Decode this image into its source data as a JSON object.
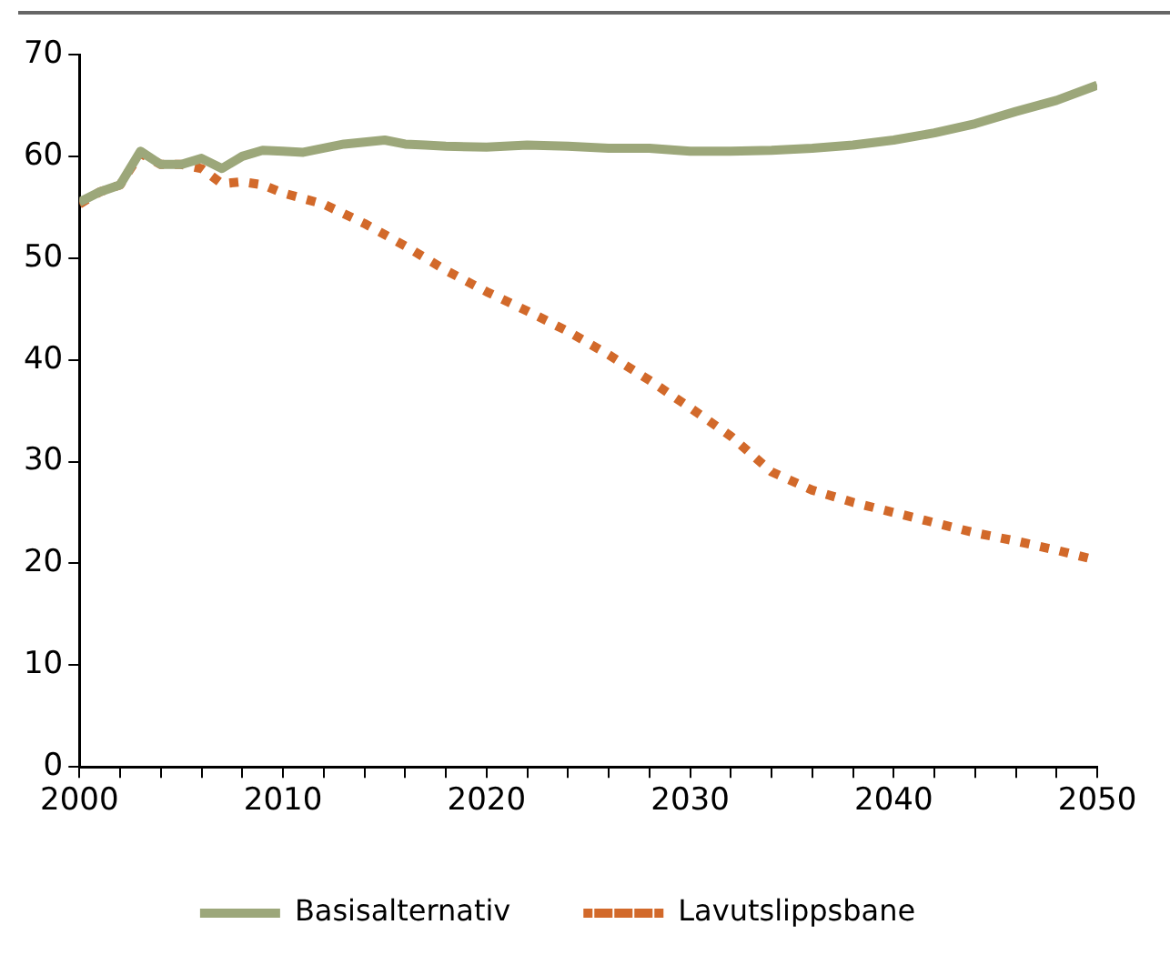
{
  "chart_data": {
    "type": "line",
    "xlim": [
      2000,
      2050
    ],
    "xticks": [
      2000,
      {
        "value": 2002,
        "label": null
      },
      {
        "value": 2004,
        "label": null
      },
      {
        "value": 2006,
        "label": null
      },
      {
        "value": 2008,
        "label": null
      },
      2010,
      {
        "value": 2012,
        "label": null
      },
      {
        "value": 2014,
        "label": null
      },
      {
        "value": 2016,
        "label": null
      },
      {
        "value": 2018,
        "label": null
      },
      2020,
      {
        "value": 2022,
        "label": null
      },
      {
        "value": 2024,
        "label": null
      },
      {
        "value": 2026,
        "label": null
      },
      {
        "value": 2028,
        "label": null
      },
      2030,
      {
        "value": 2032,
        "label": null
      },
      {
        "value": 2034,
        "label": null
      },
      {
        "value": 2036,
        "label": null
      },
      {
        "value": 2038,
        "label": null
      },
      2040,
      {
        "value": 2042,
        "label": null
      },
      {
        "value": 2044,
        "label": null
      },
      {
        "value": 2046,
        "label": null
      },
      {
        "value": 2048,
        "label": null
      },
      2050
    ],
    "ylim": [
      0,
      70
    ],
    "yticks": [
      0,
      10,
      20,
      30,
      40,
      50,
      60,
      70
    ],
    "grid": false,
    "legend": "bottom",
    "marker": "none",
    "series": [
      {
        "name": "Basisalternativ",
        "color": "#9ca77a",
        "line_style": "solid",
        "x": [
          2000,
          2001,
          2002,
          2003,
          2004,
          2005,
          2006,
          2007,
          2008,
          2009,
          2010,
          2011,
          2012,
          2013,
          2014,
          2015,
          2016,
          2017,
          2018,
          2020,
          2022,
          2024,
          2026,
          2028,
          2030,
          2032,
          2034,
          2036,
          2038,
          2040,
          2042,
          2044,
          2046,
          2048,
          2050
        ],
        "values": [
          55.5,
          56.5,
          57.2,
          60.5,
          59.2,
          59.2,
          59.8,
          58.8,
          60,
          60.6,
          60.5,
          60.4,
          60.8,
          61.2,
          61.4,
          61.6,
          61.2,
          61.1,
          61,
          60.9,
          61.1,
          61,
          60.8,
          60.8,
          60.5,
          60.5,
          60.6,
          60.8,
          61.1,
          61.6,
          62.3,
          63.2,
          64.4,
          65.5,
          67
        ]
      },
      {
        "name": "Lavutslippsbane",
        "color": "#d2692a",
        "line_style": "dotted",
        "x": [
          2000,
          2001,
          2002,
          2003,
          2004,
          2005,
          2006,
          2007,
          2008,
          2009,
          2010,
          2012,
          2014,
          2016,
          2018,
          2020,
          2022,
          2024,
          2026,
          2028,
          2030,
          2032,
          2034,
          2036,
          2038,
          2040,
          2042,
          2044,
          2046,
          2048,
          2050
        ],
        "values": [
          55.3,
          56.5,
          57.2,
          60.3,
          59.2,
          59.2,
          58.8,
          57.3,
          57.5,
          57.2,
          56.4,
          55.3,
          53.4,
          51.2,
          48.8,
          46.7,
          44.8,
          42.8,
          40.5,
          38,
          35.3,
          32.5,
          29,
          27.2,
          26,
          25,
          24,
          23,
          22.2,
          21.3,
          20.3
        ]
      }
    ]
  }
}
